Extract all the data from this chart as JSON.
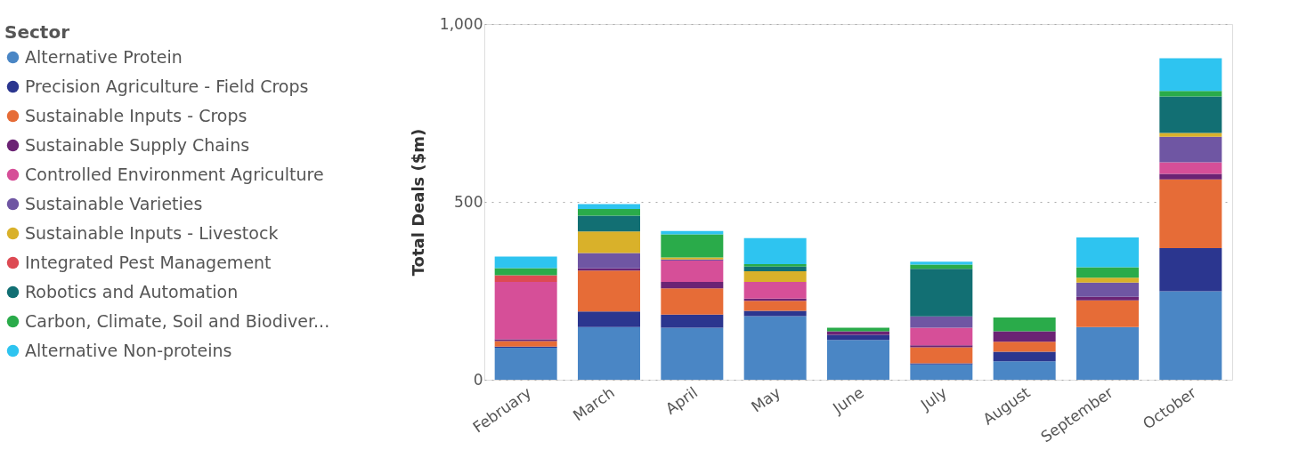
{
  "chart_data": {
    "type": "bar",
    "stacked": true,
    "ylabel": "Total Deals ($m)",
    "legend_title": "Sector",
    "legend": "left",
    "grid": "y",
    "ylim": [
      0,
      1000
    ],
    "yticks": [
      0,
      {
        "value": 500,
        "label": "500"
      },
      {
        "value": 1000,
        "label": "1,000"
      }
    ],
    "categories": [
      "February",
      "March",
      "April",
      "May",
      "June",
      "July",
      "August",
      "September",
      "October"
    ],
    "series": [
      {
        "name": "Alternative Protein",
        "color": "#4a86c5",
        "values": [
          90,
          148,
          146,
          179,
          112,
          43,
          52,
          148,
          249
        ]
      },
      {
        "name": "Precision Agriculture - Field Crops",
        "color": "#2b368f",
        "values": [
          3,
          44,
          37,
          15,
          14,
          3,
          27,
          null,
          121
        ]
      },
      {
        "name": "Sustainable Inputs - Crops",
        "color": "#e66c37",
        "values": [
          16,
          115,
          74,
          28,
          null,
          45,
          28,
          75,
          193
        ]
      },
      {
        "name": "Sustainable Supply Chains",
        "color": "#6b2374",
        "values": [
          5,
          6,
          18,
          6,
          10,
          6,
          29,
          10,
          16
        ]
      },
      {
        "name": "Controlled Environment Agriculture",
        "color": "#d64f98",
        "values": [
          161,
          null,
          60,
          47,
          null,
          49,
          null,
          null,
          32
        ]
      },
      {
        "name": "Sustainable Varieties",
        "color": "#6f56a3",
        "values": [
          null,
          43,
          3,
          null,
          null,
          32,
          null,
          40,
          72
        ]
      },
      {
        "name": "Sustainable Inputs - Livestock",
        "color": "#d9b12a",
        "values": [
          null,
          61,
          6,
          30,
          null,
          null,
          null,
          14,
          11
        ]
      },
      {
        "name": "Integrated Pest Management",
        "color": "#dd4a53",
        "values": [
          19,
          null,
          null,
          null,
          null,
          null,
          null,
          null,
          null
        ]
      },
      {
        "name": "Robotics and Automation",
        "color": "#126f73",
        "values": [
          null,
          44,
          null,
          13,
          null,
          134,
          null,
          null,
          102
        ]
      },
      {
        "name": "Carbon, Climate, Soil and Biodiver...",
        "color": "#2aab4a",
        "values": [
          20,
          19,
          65,
          7,
          10,
          12,
          39,
          29,
          16
        ]
      },
      {
        "name": "Alternative Non-proteins",
        "color": "#2ec4f0",
        "values": [
          32,
          14,
          9,
          73,
          null,
          8,
          null,
          84,
          92
        ]
      }
    ]
  }
}
